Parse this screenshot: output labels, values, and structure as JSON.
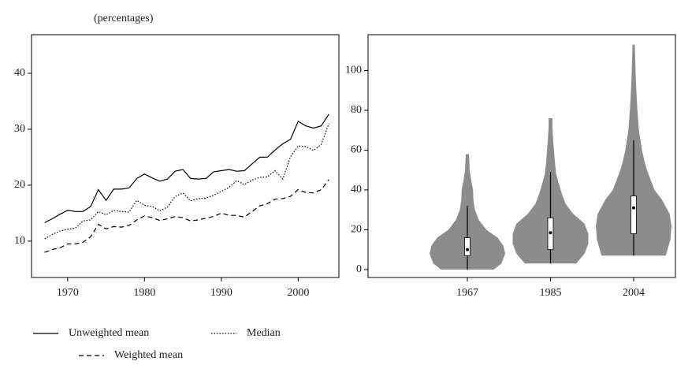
{
  "chart_data": [
    {
      "type": "line",
      "subtitle": "(percentages)",
      "x": [
        1967,
        1968,
        1969,
        1970,
        1971,
        1972,
        1973,
        1974,
        1975,
        1976,
        1977,
        1978,
        1979,
        1980,
        1981,
        1982,
        1983,
        1984,
        1985,
        1986,
        1987,
        1988,
        1989,
        1990,
        1991,
        1992,
        1993,
        1994,
        1995,
        1996,
        1997,
        1998,
        1999,
        2000,
        2001,
        2002,
        2003,
        2004
      ],
      "xlim": [
        1965.3,
        2005.3
      ],
      "xticks": [
        1970,
        1980,
        1990,
        2000
      ],
      "ylim": [
        3.5,
        46.9
      ],
      "yticks": [
        10,
        20,
        30,
        40
      ],
      "series": [
        {
          "name": "Unweighted mean",
          "color": "#000000",
          "style": "solid",
          "values": [
            13.3,
            14,
            14.8,
            15.5,
            15.3,
            15.3,
            16.2,
            19.2,
            17.3,
            19.3,
            19.3,
            19.5,
            21.2,
            22,
            21.3,
            20.7,
            21.1,
            22.5,
            22.8,
            21.2,
            21.1,
            21.2,
            22.4,
            22.6,
            22.8,
            22.5,
            22.6,
            23.8,
            25,
            25,
            26.3,
            27.4,
            28.2,
            31.4,
            30.6,
            30.2,
            30.6,
            32.7
          ]
        },
        {
          "name": "Median",
          "color": "#000000",
          "style": "dotted",
          "values": [
            10.4,
            11.2,
            11.8,
            12.1,
            12.3,
            13.6,
            13.8,
            15.3,
            14.7,
            15.5,
            15.3,
            15.2,
            17.3,
            16.4,
            16.2,
            15.4,
            16.1,
            18,
            18.6,
            17.2,
            17.6,
            17.7,
            18.2,
            18.9,
            19.6,
            20.8,
            20.1,
            20.9,
            21.4,
            21.5,
            22.6,
            21.1,
            25.1,
            27,
            26.9,
            26.2,
            27.3,
            31
          ]
        },
        {
          "name": "Weighted mean",
          "color": "#000000",
          "style": "dashed",
          "values": [
            8,
            8.5,
            8.8,
            9.5,
            9.5,
            9.8,
            10.8,
            13,
            12.2,
            12.6,
            12.5,
            12.8,
            13.8,
            14.5,
            14.2,
            13.7,
            14,
            14.4,
            14.2,
            13.6,
            13.8,
            14.1,
            14.4,
            15,
            14.6,
            14.6,
            14.3,
            15.3,
            16.3,
            16.7,
            17.5,
            17.6,
            18,
            19.2,
            18.7,
            18.6,
            19.2,
            21
          ]
        }
      ]
    },
    {
      "type": "violin",
      "categories": [
        "1967",
        "1985",
        "2004"
      ],
      "ylim": [
        -4,
        118
      ],
      "yticks": [
        0,
        20,
        40,
        60,
        80,
        100
      ],
      "color": "#8c8c8c",
      "violins": [
        {
          "whisker_low": 0,
          "q1": 7,
          "median": 10,
          "q3": 16,
          "whisker_high": 32,
          "density_y": [
            0,
            3,
            8,
            12,
            16,
            20,
            25,
            30,
            35,
            40,
            45,
            50,
            55,
            58
          ],
          "density": [
            0.7,
            0.9,
            1,
            0.95,
            0.8,
            0.5,
            0.3,
            0.2,
            0.16,
            0.15,
            0.1,
            0.06,
            0.05,
            0.04
          ]
        },
        {
          "whisker_low": 3,
          "q1": 10,
          "median": 18.5,
          "q3": 26,
          "whisker_high": 49,
          "density_y": [
            3,
            8,
            13,
            18,
            23,
            28,
            33,
            38,
            43,
            48,
            53,
            58,
            63,
            68,
            72,
            76
          ],
          "density": [
            0.68,
            0.9,
            1,
            1,
            0.9,
            0.6,
            0.4,
            0.3,
            0.22,
            0.15,
            0.12,
            0.1,
            0.08,
            0.06,
            0.05,
            0.05
          ]
        },
        {
          "whisker_low": 7,
          "q1": 18,
          "median": 31,
          "q3": 37,
          "whisker_high": 65,
          "density_y": [
            7,
            15,
            22,
            28,
            35,
            40,
            45,
            50,
            55,
            60,
            65,
            70,
            80,
            90,
            100,
            113
          ],
          "density": [
            0.85,
            0.97,
            1,
            0.95,
            0.75,
            0.55,
            0.45,
            0.35,
            0.28,
            0.22,
            0.18,
            0.14,
            0.1,
            0.07,
            0.05,
            0.03
          ]
        }
      ]
    }
  ]
}
